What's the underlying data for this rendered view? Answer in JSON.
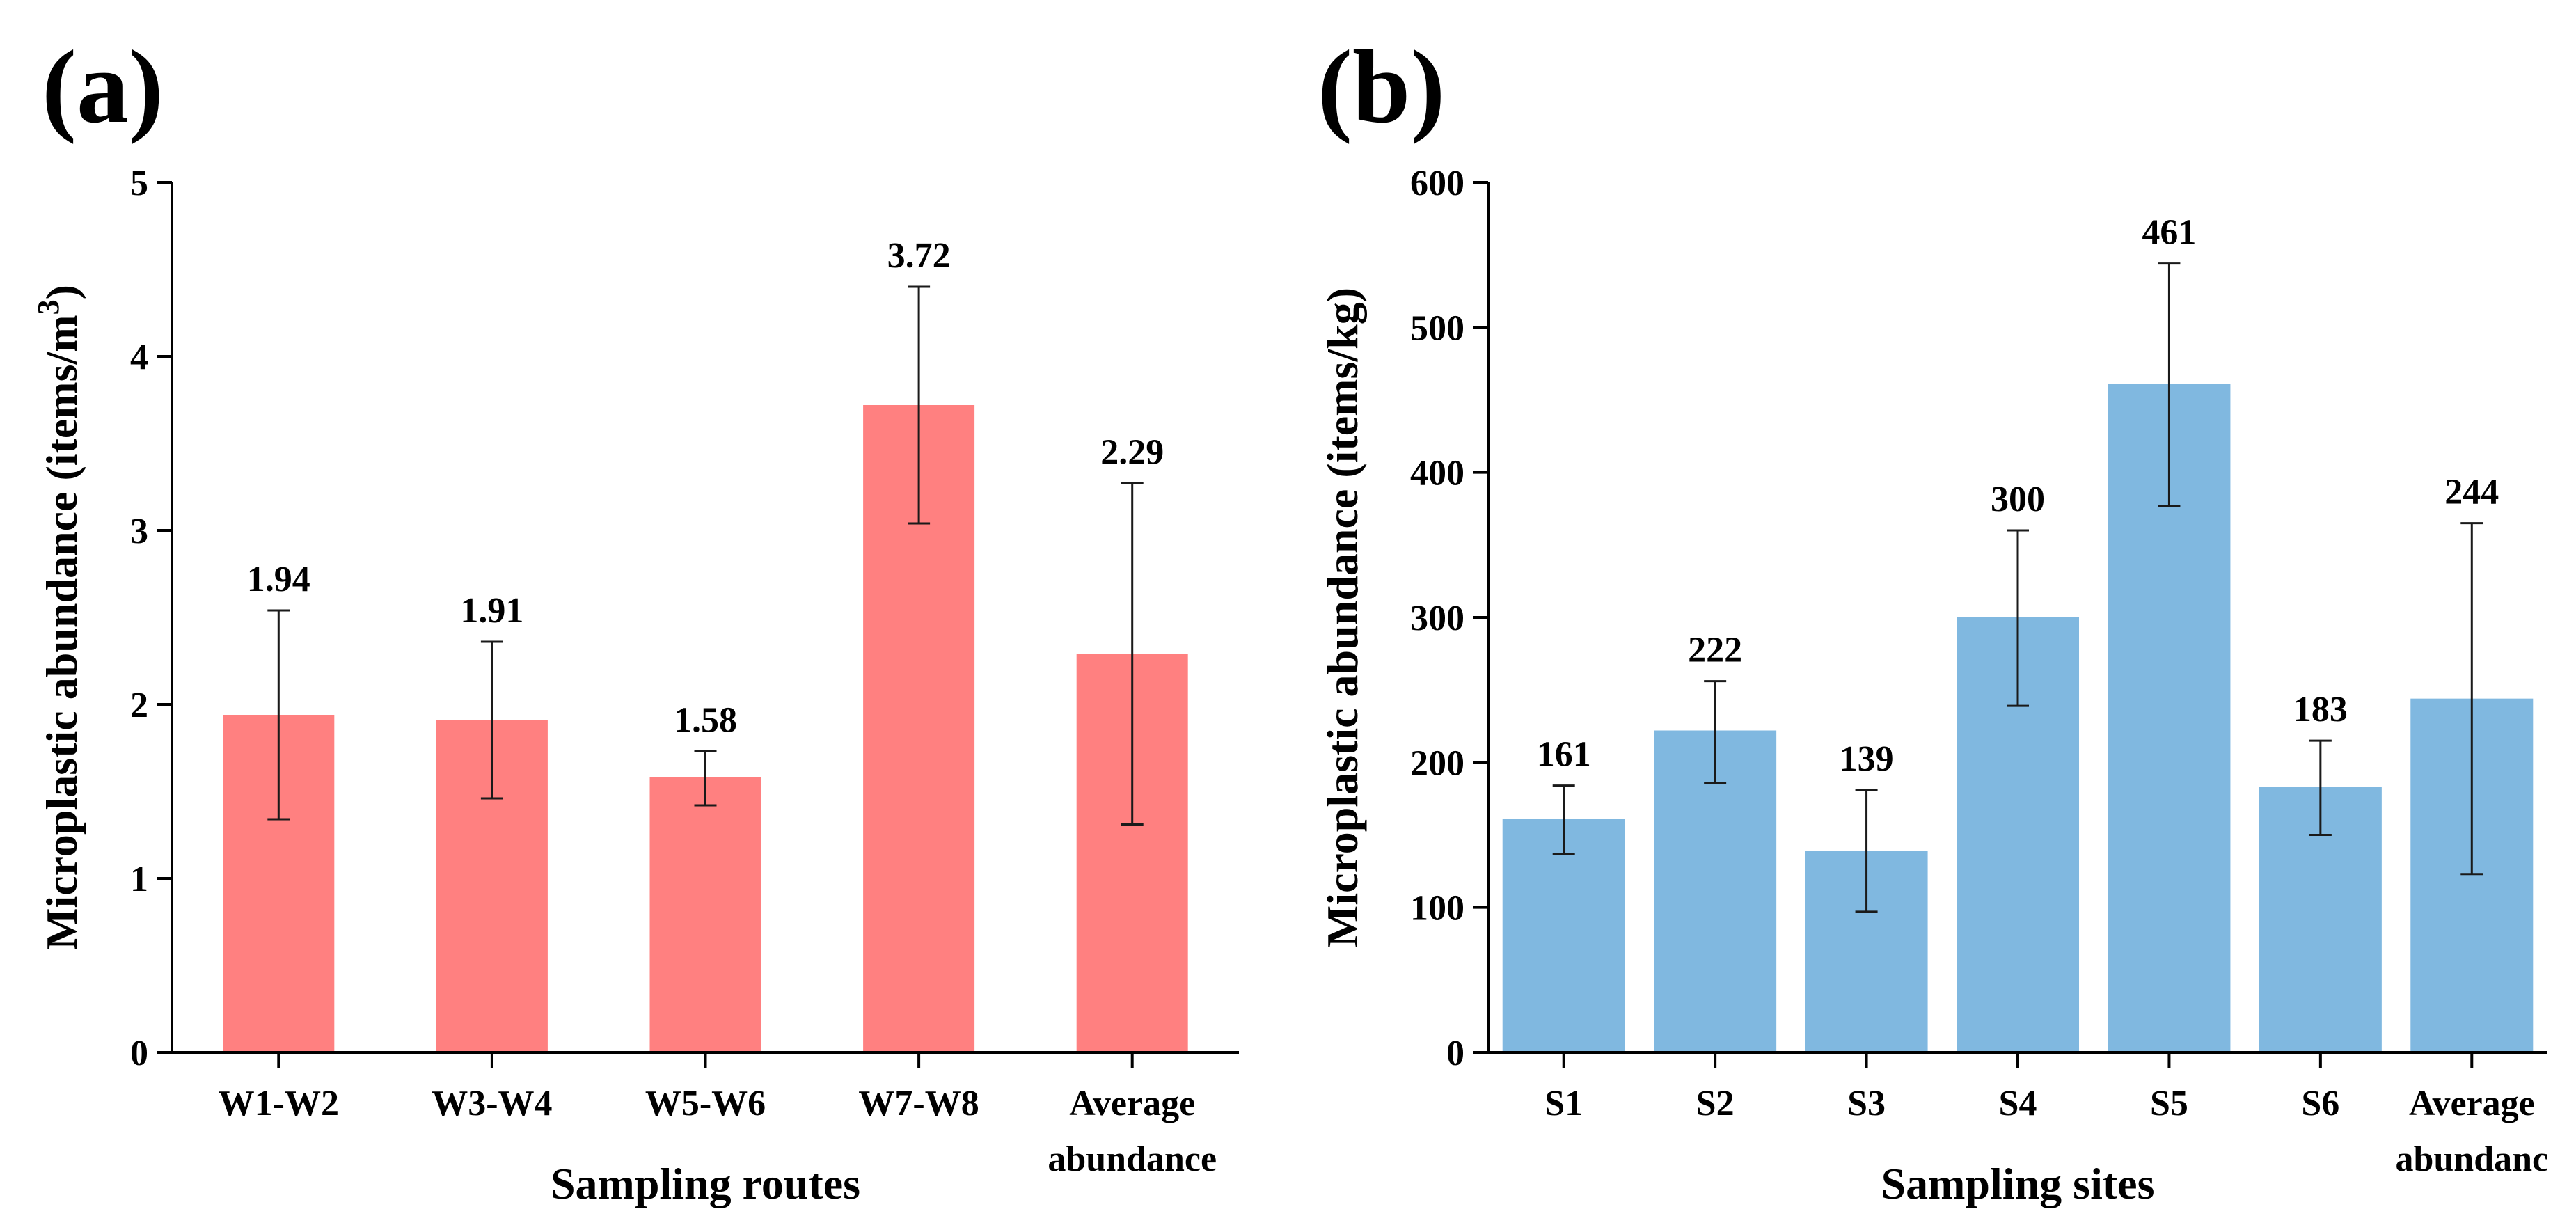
{
  "chart_data": [
    {
      "panel": "(a)",
      "type": "bar",
      "categories": [
        "W1-W2",
        "W3-W4",
        "W5-W6",
        "W7-W8",
        "Average abundance"
      ],
      "category_lines": [
        [
          "W1-W2"
        ],
        [
          "W3-W4"
        ],
        [
          "W5-W6"
        ],
        [
          "W7-W8"
        ],
        [
          "Average",
          "abundance"
        ]
      ],
      "values": [
        1.94,
        1.91,
        1.58,
        3.72,
        2.29
      ],
      "value_labels": [
        "1.94",
        "1.91",
        "1.58",
        "3.72",
        "2.29"
      ],
      "error_low": [
        1.34,
        1.46,
        1.42,
        3.04,
        1.31
      ],
      "error_high": [
        2.54,
        2.36,
        1.73,
        4.4,
        3.27
      ],
      "xlabel": "Sampling routes",
      "ylabel": "Microplastic abundance (items/m",
      "ylabel_sup": "3",
      "ylabel_close": ")",
      "ylim": [
        0,
        5
      ],
      "yticks": [
        0,
        1,
        2,
        3,
        4,
        5
      ],
      "ytick_labels": [
        "0",
        "1",
        "2",
        "3",
        "4",
        "5"
      ],
      "bar_color": "#ff8080"
    },
    {
      "panel": "(b)",
      "type": "bar",
      "categories": [
        "S1",
        "S2",
        "S3",
        "S4",
        "S5",
        "S6",
        "Average abundanc"
      ],
      "category_lines": [
        [
          "S1"
        ],
        [
          "S2"
        ],
        [
          "S3"
        ],
        [
          "S4"
        ],
        [
          "S5"
        ],
        [
          "S6"
        ],
        [
          "Average",
          "abundanc"
        ]
      ],
      "values": [
        161,
        222,
        139,
        300,
        461,
        183,
        244
      ],
      "value_labels": [
        "161",
        "222",
        "139",
        "300",
        "461",
        "183",
        "244"
      ],
      "error_low": [
        137,
        186,
        97,
        239,
        377,
        150,
        123
      ],
      "error_high": [
        184,
        256,
        181,
        360,
        544,
        215,
        365
      ],
      "xlabel": "Sampling sites",
      "ylabel": "Microplastic abundance (items/kg)",
      "ylim": [
        0,
        600
      ],
      "yticks": [
        0,
        100,
        200,
        300,
        400,
        500,
        600
      ],
      "ytick_labels": [
        "0",
        "100",
        "200",
        "300",
        "400",
        "500",
        "600"
      ],
      "bar_color": "#80b8e0"
    }
  ]
}
